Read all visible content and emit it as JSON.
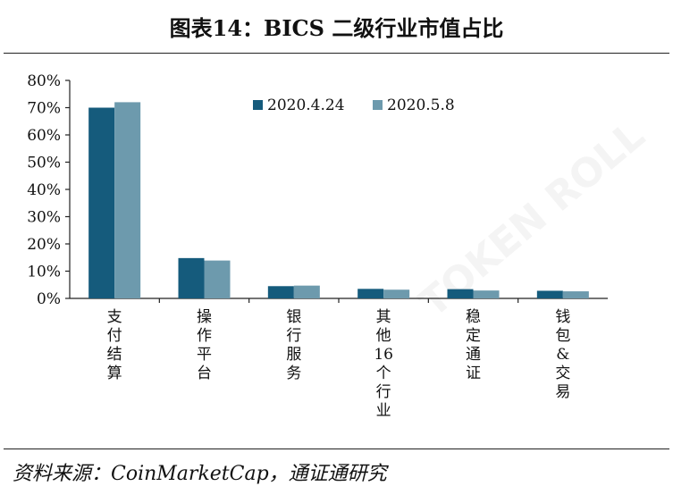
{
  "figure": {
    "title": "图表14：BICS 二级行业市值占比",
    "source": "资料来源：CoinMarketCap，通证通研究"
  },
  "chart_data": {
    "type": "bar",
    "categories": [
      "支付结算",
      "操作平台",
      "银行服务",
      "其他16个行业",
      "稳定通证",
      "钱包&交易"
    ],
    "series": [
      {
        "name": "2020.4.24",
        "color": "#155b7c",
        "values": [
          70,
          14.8,
          4.5,
          3.5,
          3.4,
          2.8
        ]
      },
      {
        "name": "2020.5.8",
        "color": "#6d9aad",
        "values": [
          72,
          13.9,
          4.7,
          3.2,
          2.9,
          2.6
        ]
      }
    ],
    "ylim": [
      0,
      80
    ],
    "yticks": [
      0,
      10,
      20,
      30,
      40,
      50,
      60,
      70,
      80
    ],
    "ytick_labels": [
      "0%",
      "10%",
      "20%",
      "30%",
      "40%",
      "50%",
      "60%",
      "70%",
      "80%"
    ],
    "xlabel": "",
    "ylabel": "",
    "grid": false,
    "legend": "top-center"
  }
}
